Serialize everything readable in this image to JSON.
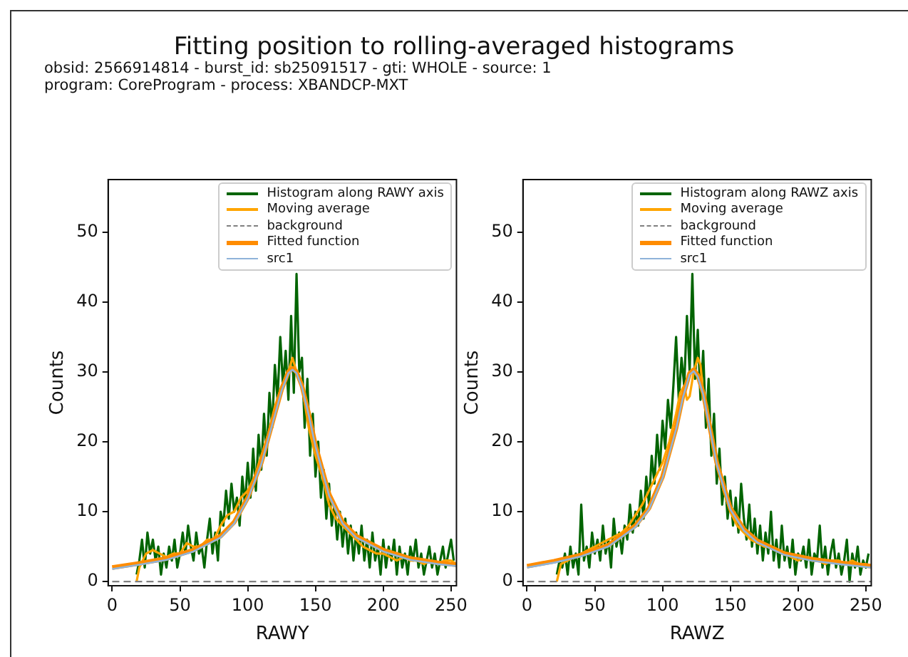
{
  "chart_data": [
    {
      "type": "line",
      "title": "Fitting position to rolling-averaged histograms",
      "subtitle": "obsid: 2566914814 - burst_id: sb25091517 - gti: WHOLE - source: 1",
      "annotations": [
        "program: CoreProgram - process: XBANDCP-MXT"
      ],
      "xlabel": "RAWY",
      "ylabel": "Counts",
      "xlim": [
        -3,
        254
      ],
      "xticks": [
        0,
        50,
        100,
        150,
        200,
        250
      ],
      "ylim": [
        -0.6,
        57.5
      ],
      "yticks": [
        0,
        10,
        20,
        30,
        40,
        50
      ],
      "grid": false,
      "legend": "top right",
      "marker": "none",
      "series": [
        {
          "name": "Histogram along RAWY axis",
          "color": "#006400",
          "x": [
            18,
            20,
            22,
            24,
            26,
            28,
            30,
            32,
            34,
            36,
            38,
            40,
            42,
            44,
            46,
            48,
            50,
            52,
            54,
            56,
            58,
            60,
            62,
            64,
            66,
            68,
            70,
            72,
            74,
            76,
            78,
            80,
            82,
            84,
            86,
            88,
            90,
            92,
            94,
            96,
            98,
            100,
            102,
            104,
            106,
            108,
            110,
            112,
            114,
            116,
            118,
            120,
            122,
            124,
            126,
            128,
            130,
            132,
            134,
            136,
            138,
            140,
            142,
            144,
            146,
            148,
            150,
            152,
            154,
            156,
            158,
            160,
            162,
            164,
            166,
            168,
            170,
            172,
            174,
            176,
            178,
            180,
            182,
            184,
            186,
            188,
            190,
            192,
            194,
            196,
            198,
            200,
            202,
            204,
            206,
            208,
            210,
            212,
            214,
            216,
            218,
            220,
            222,
            224,
            226,
            228,
            230,
            232,
            234,
            236,
            238,
            240,
            242,
            244,
            246,
            248,
            250,
            252
          ],
          "values": [
            1,
            3,
            6,
            2,
            7,
            4,
            6,
            3,
            5,
            1,
            4,
            2,
            5,
            3,
            6,
            2,
            4,
            7,
            4,
            8,
            5,
            3,
            7,
            4,
            5,
            2,
            6,
            9,
            4,
            7,
            3,
            10,
            8,
            13,
            9,
            14,
            10,
            12,
            8,
            15,
            11,
            17,
            12,
            19,
            13,
            21,
            16,
            24,
            18,
            27,
            22,
            31,
            26,
            35,
            28,
            33,
            26,
            38,
            27,
            44,
            30,
            32,
            22,
            29,
            18,
            24,
            15,
            20,
            12,
            16,
            9,
            14,
            8,
            11,
            6,
            10,
            5,
            9,
            4,
            8,
            3,
            7,
            4,
            8,
            3,
            6,
            2,
            7,
            3,
            5,
            1,
            6,
            2,
            5,
            3,
            6,
            1,
            5,
            2,
            4,
            1,
            5,
            3,
            6,
            2,
            4,
            1,
            3,
            5,
            2,
            4,
            1,
            3,
            5,
            2,
            4,
            6,
            3
          ]
        },
        {
          "name": "Moving average",
          "color": "#ffa500",
          "x": [
            18,
            20,
            25,
            30,
            35,
            40,
            45,
            50,
            55,
            60,
            65,
            70,
            75,
            80,
            85,
            90,
            95,
            100,
            105,
            110,
            115,
            120,
            125,
            130,
            133,
            136,
            140,
            145,
            150,
            155,
            160,
            165,
            170,
            175,
            180,
            185,
            190,
            195,
            200,
            205,
            210,
            215,
            220,
            225,
            230,
            235,
            240,
            245,
            250,
            254
          ],
          "values": [
            0,
            2,
            4,
            4.5,
            4,
            3.5,
            4,
            4,
            5.5,
            5,
            5,
            6,
            6,
            8,
            9.5,
            10,
            12,
            13,
            15,
            18,
            21,
            25,
            28,
            30,
            32,
            30,
            28,
            22,
            18,
            15,
            11,
            9,
            8,
            7,
            6,
            5,
            4.5,
            4,
            4,
            3.5,
            3,
            3.5,
            3,
            3,
            2.5,
            3,
            2.5,
            3,
            3,
            2.5
          ]
        },
        {
          "name": "background",
          "color": "#808080",
          "line_style": "dashed",
          "x": [
            0,
            254
          ],
          "values": [
            0,
            0
          ]
        },
        {
          "name": "Fitted function",
          "color": "#ff8c00",
          "x": [
            0,
            20,
            40,
            60,
            80,
            90,
            100,
            110,
            120,
            125,
            130,
            133,
            136,
            140,
            145,
            150,
            160,
            170,
            180,
            200,
            220,
            240,
            254
          ],
          "values": [
            2,
            2.6,
            3.3,
            4.5,
            6.5,
            8.5,
            12,
            17,
            24,
            27.5,
            30,
            30.5,
            30,
            28,
            24,
            19.5,
            12.5,
            8.5,
            6.5,
            4.5,
            3.3,
            2.7,
            2.4
          ]
        },
        {
          "name": "src1",
          "color": "#8fb3d9",
          "x": [
            0,
            20,
            40,
            60,
            80,
            90,
            100,
            110,
            120,
            125,
            130,
            133,
            136,
            140,
            145,
            150,
            160,
            170,
            180,
            200,
            220,
            240,
            254
          ],
          "values": [
            1.8,
            2.4,
            3.1,
            4.3,
            6.3,
            8.3,
            11.8,
            16.8,
            23.8,
            27.3,
            29.8,
            30.3,
            29.8,
            27.8,
            23.8,
            19.3,
            12.3,
            8.3,
            6.3,
            4.3,
            3.1,
            2.5,
            2.2
          ]
        }
      ]
    },
    {
      "type": "line",
      "xlabel": "RAWZ",
      "ylabel": "Counts",
      "xlim": [
        -3,
        254
      ],
      "xticks": [
        0,
        50,
        100,
        150,
        200,
        250
      ],
      "ylim": [
        -0.6,
        57.5
      ],
      "yticks": [
        0,
        10,
        20,
        30,
        40,
        50
      ],
      "grid": false,
      "legend": "top right",
      "marker": "none",
      "series": [
        {
          "name": "Histogram along RAWZ axis",
          "color": "#006400",
          "x": [
            22,
            24,
            26,
            28,
            30,
            32,
            34,
            36,
            38,
            40,
            42,
            44,
            46,
            48,
            50,
            52,
            54,
            56,
            58,
            60,
            62,
            64,
            66,
            68,
            70,
            72,
            74,
            76,
            78,
            80,
            82,
            84,
            86,
            88,
            90,
            92,
            94,
            96,
            98,
            100,
            102,
            104,
            106,
            108,
            110,
            112,
            114,
            116,
            118,
            120,
            122,
            124,
            126,
            128,
            130,
            132,
            134,
            136,
            138,
            140,
            142,
            144,
            146,
            148,
            150,
            152,
            154,
            156,
            158,
            160,
            162,
            164,
            166,
            168,
            170,
            172,
            174,
            176,
            178,
            180,
            182,
            184,
            186,
            188,
            190,
            192,
            194,
            196,
            198,
            200,
            202,
            204,
            206,
            208,
            210,
            212,
            214,
            216,
            218,
            220,
            222,
            224,
            226,
            228,
            230,
            232,
            234,
            236,
            238,
            240,
            242,
            244,
            246,
            248,
            250,
            252
          ],
          "values": [
            1,
            3,
            2,
            4,
            1,
            5,
            2,
            4,
            1,
            11,
            3,
            5,
            2,
            7,
            4,
            6,
            3,
            8,
            4,
            6,
            2,
            9,
            5,
            7,
            4,
            8,
            6,
            11,
            7,
            10,
            8,
            13,
            9,
            15,
            11,
            18,
            14,
            21,
            16,
            23,
            19,
            26,
            22,
            28,
            35,
            26,
            32,
            28,
            38,
            30,
            44,
            29,
            36,
            26,
            33,
            22,
            29,
            18,
            24,
            14,
            19,
            11,
            15,
            9,
            13,
            8,
            12,
            7,
            14,
            9,
            6,
            11,
            5,
            9,
            4,
            8,
            3,
            7,
            4,
            10,
            3,
            6,
            2,
            8,
            3,
            5,
            2,
            6,
            1,
            4,
            3,
            5,
            2,
            6,
            1,
            4,
            3,
            8,
            2,
            5,
            1,
            4,
            6,
            2,
            4,
            1,
            3,
            6,
            0,
            4,
            2,
            5,
            1,
            3,
            2,
            4
          ]
        },
        {
          "name": "Moving average",
          "color": "#ffa500",
          "x": [
            22,
            25,
            30,
            35,
            40,
            45,
            50,
            55,
            60,
            65,
            70,
            75,
            80,
            85,
            90,
            95,
            100,
            105,
            110,
            113,
            116,
            118,
            120,
            123,
            126,
            128,
            130,
            135,
            140,
            145,
            150,
            155,
            160,
            165,
            170,
            175,
            180,
            185,
            190,
            195,
            200,
            205,
            210,
            215,
            220,
            225,
            230,
            235,
            240,
            245,
            250,
            254
          ],
          "values": [
            0,
            2.5,
            3,
            3.5,
            4,
            4.5,
            5,
            5.5,
            6,
            6.5,
            7,
            8,
            9.5,
            11,
            13,
            15,
            17,
            20,
            24,
            27,
            28,
            26,
            26.5,
            30,
            32,
            31,
            27,
            22,
            17,
            13,
            10,
            8,
            7,
            6,
            5.5,
            5,
            5,
            4.5,
            4,
            3.5,
            3,
            3.5,
            3,
            3,
            2.5,
            3,
            3,
            2.5,
            3,
            2.5,
            2.5,
            2
          ]
        },
        {
          "name": "background",
          "color": "#808080",
          "line_style": "dashed",
          "x": [
            0,
            254
          ],
          "values": [
            0,
            0
          ]
        },
        {
          "name": "Fitted function",
          "color": "#ff8c00",
          "x": [
            0,
            20,
            40,
            60,
            80,
            90,
            100,
            110,
            115,
            120,
            123,
            126,
            130,
            135,
            140,
            150,
            160,
            170,
            190,
            210,
            230,
            254
          ],
          "values": [
            2.2,
            2.9,
            3.8,
            5.2,
            8,
            10.5,
            15,
            22,
            26.5,
            29.8,
            30.3,
            29.5,
            27,
            22,
            17,
            10.5,
            7.5,
            5.8,
            4,
            3.2,
            2.7,
            2.2
          ]
        },
        {
          "name": "src1",
          "color": "#8fb3d9",
          "x": [
            0,
            20,
            40,
            60,
            80,
            90,
            100,
            110,
            115,
            120,
            123,
            126,
            130,
            135,
            140,
            150,
            160,
            170,
            190,
            210,
            230,
            254
          ],
          "values": [
            2,
            2.7,
            3.6,
            5,
            7.8,
            10.3,
            14.8,
            21.8,
            26.3,
            29.6,
            30.1,
            29.3,
            26.8,
            21.8,
            16.8,
            10.3,
            7.3,
            5.6,
            3.8,
            3,
            2.5,
            2
          ]
        }
      ]
    }
  ]
}
